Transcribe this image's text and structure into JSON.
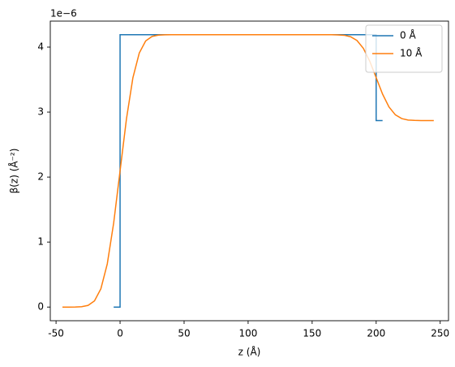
{
  "chart_data": {
    "type": "line",
    "x_label": "z (Å)",
    "y_label": "β(z) (Å⁻²)",
    "y_offset_label": "1e−6",
    "xlim": [
      -54.5,
      256.5
    ],
    "ylim": [
      -0.21,
      4.4
    ],
    "xticks": [
      -50,
      0,
      50,
      100,
      150,
      200,
      250
    ],
    "yticks": [
      0,
      1,
      2,
      3,
      4
    ],
    "grid": false,
    "legend": "upper right",
    "series": [
      {
        "name": "0 Å",
        "color": "#1f77b4",
        "x": [
          -5,
          0,
          0,
          200,
          200,
          205
        ],
        "values": [
          0,
          0,
          4.19,
          4.19,
          2.87,
          2.87
        ]
      },
      {
        "name": "10 Å",
        "color": "#ff7f0e",
        "x": [
          -45,
          -40,
          -35,
          -30,
          -25,
          -20,
          -15,
          -10,
          -5,
          0,
          5,
          10,
          15,
          20,
          25,
          30,
          35,
          40,
          45,
          50,
          55,
          60,
          65,
          70,
          75,
          80,
          85,
          90,
          95,
          100,
          105,
          110,
          115,
          120,
          125,
          130,
          135,
          140,
          145,
          150,
          155,
          160,
          165,
          170,
          175,
          180,
          185,
          190,
          195,
          200,
          205,
          210,
          215,
          220,
          225,
          230,
          235,
          240,
          245
        ],
        "values": [
          0,
          0,
          0.001,
          0.006,
          0.026,
          0.095,
          0.281,
          0.664,
          1.293,
          2.095,
          2.897,
          3.526,
          3.909,
          4.095,
          4.164,
          4.184,
          4.189,
          4.19,
          4.19,
          4.19,
          4.19,
          4.19,
          4.19,
          4.19,
          4.19,
          4.19,
          4.19,
          4.19,
          4.19,
          4.19,
          4.19,
          4.19,
          4.19,
          4.19,
          4.19,
          4.19,
          4.19,
          4.19,
          4.19,
          4.19,
          4.19,
          4.19,
          4.19,
          4.188,
          4.182,
          4.16,
          4.102,
          3.981,
          3.783,
          3.53,
          3.277,
          3.079,
          2.958,
          2.9,
          2.878,
          2.872,
          2.87,
          2.87,
          2.87
        ]
      }
    ]
  }
}
